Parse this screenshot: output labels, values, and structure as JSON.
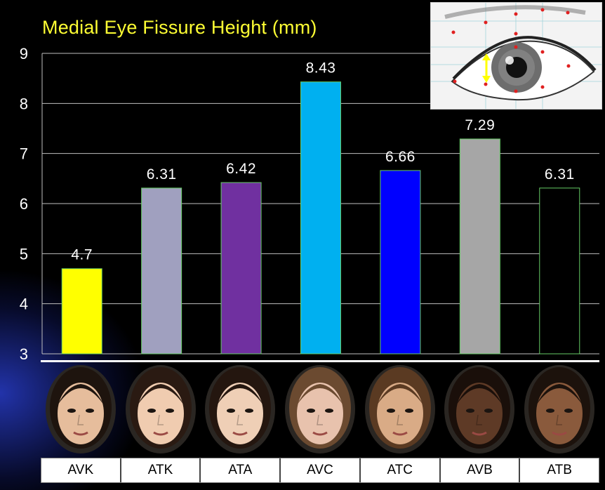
{
  "chart_data": {
    "type": "bar",
    "title": "Medial Eye Fissure Height (mm)",
    "categories": [
      "AVK",
      "ATK",
      "ATA",
      "AVC",
      "ATC",
      "AVB",
      "ATB"
    ],
    "values": [
      4.7,
      6.31,
      6.42,
      8.43,
      6.66,
      7.29,
      6.31
    ],
    "value_labels": [
      "4.7",
      "6.31",
      "6.42",
      "8.43",
      "6.66",
      "7.29",
      "6.31"
    ],
    "bar_colors": [
      "#ffff00",
      "#a0a0bf",
      "#7030a0",
      "#00b0f0",
      "#0000ff",
      "#a6a6a6",
      "#000000"
    ],
    "ylim": [
      3,
      9
    ],
    "yticks": [
      "3",
      "4",
      "5",
      "6",
      "7",
      "8",
      "9"
    ],
    "grid": true,
    "xlabel": "",
    "ylabel": ""
  },
  "faces": [
    {
      "skin": "#e6bd9c",
      "hair": "#1e140e"
    },
    {
      "skin": "#f0ccb0",
      "hair": "#2a1a12"
    },
    {
      "skin": "#efcfb6",
      "hair": "#24160f"
    },
    {
      "skin": "#e8c2ad",
      "hair": "#6b4a30"
    },
    {
      "skin": "#d9ab86",
      "hair": "#5a3a22"
    },
    {
      "skin": "#5e3a26",
      "hair": "#1a0f0a"
    },
    {
      "skin": "#8a5a3c",
      "hair": "#1c120c"
    }
  ],
  "colors": {
    "title": "#ffff33",
    "axis_text": "#ffffff",
    "gridline": "#bfbfbf",
    "bar_outline": "#66cc66",
    "highlight_arrow": "#ffff00",
    "landmark_dot": "#e02020"
  }
}
